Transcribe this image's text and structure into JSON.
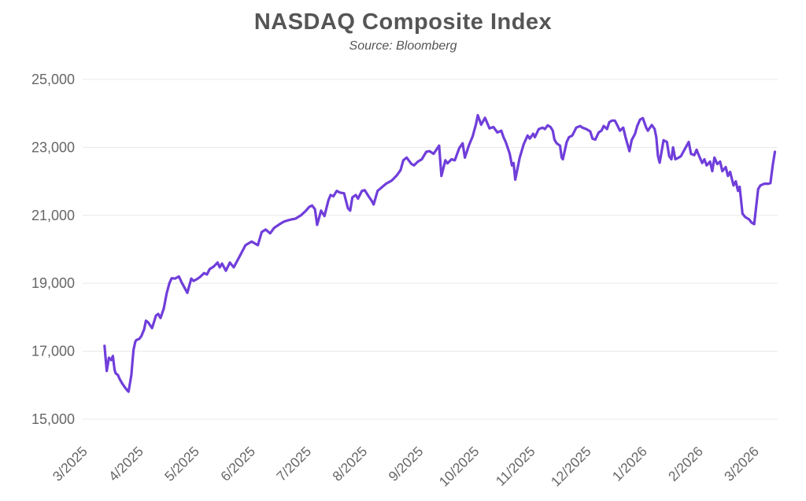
{
  "chart": {
    "title": "NASDAQ Composite Index",
    "subtitle": "Source: Bloomberg"
  },
  "colors": {
    "line": "#703EDA",
    "grid": "#e8e8e8",
    "title": "#555555",
    "subtitle": "#555555",
    "axis_label": "#666666",
    "background": "#ffffff"
  },
  "chart_data": {
    "type": "line",
    "title": "NASDAQ Composite Index",
    "subtitle": "Source: Bloomberg",
    "xlabel": "",
    "ylabel": "",
    "legend": "none",
    "grid": "horizontal-only",
    "ylim": [
      15000,
      25000
    ],
    "y_ticks": [
      15000,
      17000,
      19000,
      21000,
      23000,
      25000
    ],
    "y_tick_labels": [
      "15,000",
      "17,000",
      "19,000",
      "21,000",
      "23,000",
      "25,000"
    ],
    "x_tick_labels": [
      "3/2025",
      "4/2025",
      "5/2025",
      "6/2025",
      "7/2025",
      "8/2025",
      "9/2025",
      "10/2025",
      "11/2025",
      "12/2025",
      "1/2026",
      "2/2026",
      "3/2026"
    ],
    "x_unit": "months after 3/2025 tick",
    "xlim": [
      -0.07,
      12.35
    ],
    "series": [
      {
        "name": "NASDAQ Composite Index",
        "points": [
          [
            0.32,
            17160
          ],
          [
            0.36,
            16420
          ],
          [
            0.4,
            16810
          ],
          [
            0.44,
            16740
          ],
          [
            0.47,
            16860
          ],
          [
            0.5,
            16450
          ],
          [
            0.52,
            16350
          ],
          [
            0.56,
            16300
          ],
          [
            0.59,
            16190
          ],
          [
            0.63,
            16070
          ],
          [
            0.68,
            15950
          ],
          [
            0.73,
            15840
          ],
          [
            0.75,
            15810
          ],
          [
            0.8,
            16300
          ],
          [
            0.82,
            16700
          ],
          [
            0.84,
            17050
          ],
          [
            0.87,
            17280
          ],
          [
            0.89,
            17330
          ],
          [
            0.94,
            17360
          ],
          [
            0.98,
            17450
          ],
          [
            1.03,
            17650
          ],
          [
            1.06,
            17900
          ],
          [
            1.1,
            17850
          ],
          [
            1.17,
            17680
          ],
          [
            1.24,
            18050
          ],
          [
            1.28,
            18100
          ],
          [
            1.32,
            17980
          ],
          [
            1.38,
            18260
          ],
          [
            1.43,
            18700
          ],
          [
            1.48,
            19000
          ],
          [
            1.52,
            19150
          ],
          [
            1.58,
            19140
          ],
          [
            1.65,
            19200
          ],
          [
            1.7,
            19020
          ],
          [
            1.8,
            18720
          ],
          [
            1.87,
            19140
          ],
          [
            1.91,
            19070
          ],
          [
            1.97,
            19120
          ],
          [
            2.03,
            19190
          ],
          [
            2.1,
            19300
          ],
          [
            2.15,
            19260
          ],
          [
            2.2,
            19420
          ],
          [
            2.27,
            19490
          ],
          [
            2.34,
            19610
          ],
          [
            2.38,
            19470
          ],
          [
            2.42,
            19580
          ],
          [
            2.49,
            19370
          ],
          [
            2.56,
            19610
          ],
          [
            2.63,
            19470
          ],
          [
            2.74,
            19810
          ],
          [
            2.84,
            20120
          ],
          [
            2.95,
            20230
          ],
          [
            3.06,
            20120
          ],
          [
            3.13,
            20510
          ],
          [
            3.2,
            20580
          ],
          [
            3.28,
            20470
          ],
          [
            3.35,
            20630
          ],
          [
            3.45,
            20740
          ],
          [
            3.52,
            20810
          ],
          [
            3.59,
            20850
          ],
          [
            3.66,
            20880
          ],
          [
            3.73,
            20900
          ],
          [
            3.83,
            21000
          ],
          [
            3.91,
            21120
          ],
          [
            3.98,
            21250
          ],
          [
            4.03,
            21290
          ],
          [
            4.08,
            21180
          ],
          [
            4.12,
            20720
          ],
          [
            4.19,
            21140
          ],
          [
            4.25,
            20980
          ],
          [
            4.32,
            21440
          ],
          [
            4.36,
            21600
          ],
          [
            4.41,
            21560
          ],
          [
            4.47,
            21720
          ],
          [
            4.53,
            21670
          ],
          [
            4.6,
            21650
          ],
          [
            4.67,
            21210
          ],
          [
            4.71,
            21140
          ],
          [
            4.75,
            21530
          ],
          [
            4.81,
            21600
          ],
          [
            4.85,
            21490
          ],
          [
            4.92,
            21720
          ],
          [
            4.97,
            21740
          ],
          [
            5.04,
            21560
          ],
          [
            5.09,
            21440
          ],
          [
            5.13,
            21320
          ],
          [
            5.2,
            21720
          ],
          [
            5.25,
            21790
          ],
          [
            5.35,
            21930
          ],
          [
            5.45,
            22020
          ],
          [
            5.54,
            22170
          ],
          [
            5.61,
            22330
          ],
          [
            5.66,
            22620
          ],
          [
            5.72,
            22700
          ],
          [
            5.8,
            22520
          ],
          [
            5.85,
            22470
          ],
          [
            5.92,
            22580
          ],
          [
            5.99,
            22650
          ],
          [
            6.07,
            22870
          ],
          [
            6.13,
            22890
          ],
          [
            6.2,
            22810
          ],
          [
            6.3,
            23050
          ],
          [
            6.34,
            22160
          ],
          [
            6.41,
            22620
          ],
          [
            6.45,
            22530
          ],
          [
            6.52,
            22650
          ],
          [
            6.58,
            22620
          ],
          [
            6.66,
            22980
          ],
          [
            6.72,
            23120
          ],
          [
            6.76,
            22700
          ],
          [
            6.83,
            23050
          ],
          [
            6.9,
            23330
          ],
          [
            6.96,
            23700
          ],
          [
            6.99,
            23950
          ],
          [
            7.05,
            23670
          ],
          [
            7.12,
            23870
          ],
          [
            7.2,
            23560
          ],
          [
            7.27,
            23600
          ],
          [
            7.34,
            23440
          ],
          [
            7.41,
            23490
          ],
          [
            7.45,
            23300
          ],
          [
            7.49,
            23160
          ],
          [
            7.56,
            22820
          ],
          [
            7.6,
            22470
          ],
          [
            7.63,
            22540
          ],
          [
            7.66,
            22050
          ],
          [
            7.74,
            22700
          ],
          [
            7.81,
            23090
          ],
          [
            7.88,
            23350
          ],
          [
            7.92,
            23260
          ],
          [
            7.98,
            23400
          ],
          [
            8.01,
            23300
          ],
          [
            8.08,
            23540
          ],
          [
            8.15,
            23580
          ],
          [
            8.19,
            23540
          ],
          [
            8.24,
            23650
          ],
          [
            8.29,
            23600
          ],
          [
            8.33,
            23490
          ],
          [
            8.36,
            23230
          ],
          [
            8.4,
            23120
          ],
          [
            8.46,
            23050
          ],
          [
            8.49,
            22700
          ],
          [
            8.51,
            22650
          ],
          [
            8.58,
            23160
          ],
          [
            8.62,
            23300
          ],
          [
            8.68,
            23350
          ],
          [
            8.75,
            23580
          ],
          [
            8.82,
            23630
          ],
          [
            8.86,
            23580
          ],
          [
            8.93,
            23540
          ],
          [
            9.0,
            23470
          ],
          [
            9.04,
            23260
          ],
          [
            9.09,
            23230
          ],
          [
            9.15,
            23440
          ],
          [
            9.2,
            23490
          ],
          [
            9.24,
            23630
          ],
          [
            9.3,
            23540
          ],
          [
            9.34,
            23740
          ],
          [
            9.39,
            23790
          ],
          [
            9.44,
            23790
          ],
          [
            9.49,
            23630
          ],
          [
            9.53,
            23490
          ],
          [
            9.59,
            23580
          ],
          [
            9.63,
            23300
          ],
          [
            9.7,
            22890
          ],
          [
            9.74,
            23210
          ],
          [
            9.8,
            23400
          ],
          [
            9.84,
            23630
          ],
          [
            9.89,
            23820
          ],
          [
            9.94,
            23860
          ],
          [
            10.0,
            23580
          ],
          [
            10.03,
            23490
          ],
          [
            10.1,
            23660
          ],
          [
            10.15,
            23540
          ],
          [
            10.18,
            23300
          ],
          [
            10.21,
            22750
          ],
          [
            10.24,
            22550
          ],
          [
            10.31,
            23210
          ],
          [
            10.37,
            23160
          ],
          [
            10.41,
            22740
          ],
          [
            10.45,
            22650
          ],
          [
            10.48,
            23000
          ],
          [
            10.52,
            22650
          ],
          [
            10.58,
            22700
          ],
          [
            10.62,
            22740
          ],
          [
            10.66,
            22860
          ],
          [
            10.76,
            23160
          ],
          [
            10.8,
            22810
          ],
          [
            10.86,
            22770
          ],
          [
            10.9,
            22930
          ],
          [
            10.94,
            22770
          ],
          [
            11.0,
            22540
          ],
          [
            11.04,
            22650
          ],
          [
            11.08,
            22470
          ],
          [
            11.14,
            22580
          ],
          [
            11.18,
            22300
          ],
          [
            11.22,
            22700
          ],
          [
            11.27,
            22510
          ],
          [
            11.32,
            22580
          ],
          [
            11.36,
            22300
          ],
          [
            11.42,
            22420
          ],
          [
            11.46,
            22160
          ],
          [
            11.5,
            22280
          ],
          [
            11.56,
            21880
          ],
          [
            11.6,
            22000
          ],
          [
            11.64,
            21720
          ],
          [
            11.67,
            21840
          ],
          [
            11.72,
            21050
          ],
          [
            11.77,
            20950
          ],
          [
            11.84,
            20880
          ],
          [
            11.88,
            20790
          ],
          [
            11.93,
            20740
          ],
          [
            12.0,
            21770
          ],
          [
            12.04,
            21880
          ],
          [
            12.11,
            21930
          ],
          [
            12.18,
            21930
          ],
          [
            12.22,
            21950
          ],
          [
            12.26,
            22470
          ],
          [
            12.3,
            22870
          ]
        ]
      }
    ]
  }
}
